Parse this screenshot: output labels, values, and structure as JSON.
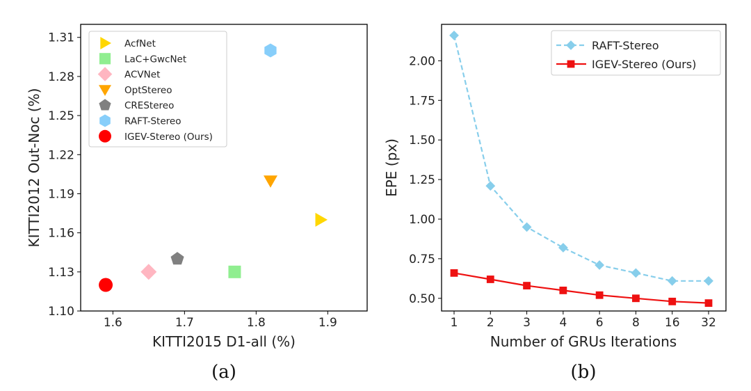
{
  "chart_data": [
    {
      "type": "scatter",
      "caption": "(a)",
      "xlabel": "KITTI2015 D1-all (%)",
      "ylabel": "KITTI2012 Out-Noc (%)",
      "xlim": [
        1.555,
        1.955
      ],
      "ylim": [
        1.1,
        1.32
      ],
      "xticks": [
        "1.6",
        "1.7",
        "1.8",
        "1.9"
      ],
      "yticks": [
        "1.10",
        "1.13",
        "1.16",
        "1.19",
        "1.22",
        "1.25",
        "1.28",
        "1.31"
      ],
      "legend_position": "top-left",
      "series": [
        {
          "name": "AcfNet",
          "x": 1.89,
          "y": 1.17,
          "marker": "triangle-right",
          "color": "#FFD700"
        },
        {
          "name": "LaC+GwcNet",
          "x": 1.77,
          "y": 1.13,
          "marker": "square",
          "color": "#90EE90"
        },
        {
          "name": "ACVNet",
          "x": 1.65,
          "y": 1.13,
          "marker": "diamond",
          "color": "#FFB6C1"
        },
        {
          "name": "OptStereo",
          "x": 1.82,
          "y": 1.2,
          "marker": "triangle-down",
          "color": "#FFA500"
        },
        {
          "name": "CREStereo",
          "x": 1.69,
          "y": 1.14,
          "marker": "pentagon",
          "color": "#808080"
        },
        {
          "name": "RAFT-Stereo",
          "x": 1.82,
          "y": 1.3,
          "marker": "hexagon",
          "color": "#87CEFA"
        },
        {
          "name": "IGEV-Stereo (Ours)",
          "x": 1.59,
          "y": 1.12,
          "marker": "circle",
          "color": "#FF0000"
        }
      ]
    },
    {
      "type": "line",
      "caption": "(b)",
      "xlabel": "Number of GRUs Iterations",
      "ylabel": "EPE (px)",
      "categories": [
        "1",
        "2",
        "3",
        "4",
        "6",
        "8",
        "16",
        "32"
      ],
      "ylim": [
        0.42,
        2.23
      ],
      "yticks": [
        "0.50",
        "0.75",
        "1.00",
        "1.25",
        "1.50",
        "1.75",
        "2.00"
      ],
      "legend_position": "top-right",
      "series": [
        {
          "name": "RAFT-Stereo",
          "values": [
            2.16,
            1.21,
            0.95,
            0.82,
            0.71,
            0.66,
            0.61,
            0.61
          ],
          "color": "#87CEEB",
          "marker": "diamond",
          "line": "dashed"
        },
        {
          "name": "IGEV-Stereo (Ours)",
          "values": [
            0.66,
            0.62,
            0.58,
            0.55,
            0.52,
            0.5,
            0.48,
            0.47
          ],
          "color": "#EE1111",
          "marker": "square",
          "line": "solid"
        }
      ]
    }
  ]
}
